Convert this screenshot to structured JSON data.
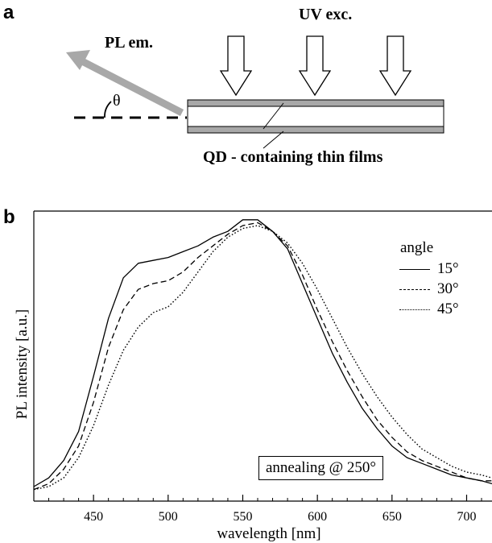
{
  "panel_a": {
    "label": "a",
    "uv_label": "UV exc.",
    "pl_label": "PL em.",
    "theta": "θ",
    "film_label": "QD - containing thin films"
  },
  "panel_b": {
    "label": "b"
  },
  "chart_data": {
    "type": "line",
    "title": "",
    "xlabel": "wavelength  [nm]",
    "ylabel": "PL intensity  [a.u.]",
    "xlim": [
      410,
      717
    ],
    "ylim": [
      0,
      1.0
    ],
    "x_ticks": [
      450,
      500,
      550,
      600,
      650,
      700
    ],
    "y_ticks": [],
    "legend": {
      "title": "angle",
      "placement": "top-right"
    },
    "annotation": "annealing @ 250°",
    "x": [
      410,
      420,
      430,
      440,
      450,
      460,
      470,
      480,
      490,
      500,
      510,
      520,
      530,
      540,
      550,
      560,
      570,
      580,
      590,
      600,
      610,
      620,
      630,
      640,
      650,
      660,
      670,
      680,
      690,
      700,
      710,
      717
    ],
    "series": [
      {
        "name": "15°",
        "style": "solid",
        "values": [
          0.05,
          0.08,
          0.14,
          0.24,
          0.43,
          0.63,
          0.77,
          0.82,
          0.83,
          0.84,
          0.86,
          0.88,
          0.91,
          0.93,
          0.97,
          0.97,
          0.93,
          0.87,
          0.75,
          0.63,
          0.51,
          0.41,
          0.32,
          0.25,
          0.19,
          0.15,
          0.13,
          0.11,
          0.09,
          0.08,
          0.07,
          0.06
        ]
      },
      {
        "name": "30°",
        "style": "dashed",
        "values": [
          0.04,
          0.06,
          0.11,
          0.19,
          0.34,
          0.53,
          0.66,
          0.73,
          0.75,
          0.76,
          0.79,
          0.84,
          0.88,
          0.92,
          0.95,
          0.96,
          0.93,
          0.88,
          0.78,
          0.66,
          0.55,
          0.45,
          0.36,
          0.28,
          0.22,
          0.17,
          0.14,
          0.12,
          0.1,
          0.08,
          0.07,
          0.07
        ]
      },
      {
        "name": "45°",
        "style": "dotted",
        "values": [
          0.04,
          0.05,
          0.08,
          0.15,
          0.26,
          0.4,
          0.52,
          0.6,
          0.65,
          0.67,
          0.72,
          0.79,
          0.86,
          0.91,
          0.94,
          0.95,
          0.93,
          0.89,
          0.82,
          0.73,
          0.63,
          0.53,
          0.44,
          0.36,
          0.29,
          0.23,
          0.18,
          0.15,
          0.12,
          0.1,
          0.09,
          0.08
        ]
      }
    ]
  }
}
